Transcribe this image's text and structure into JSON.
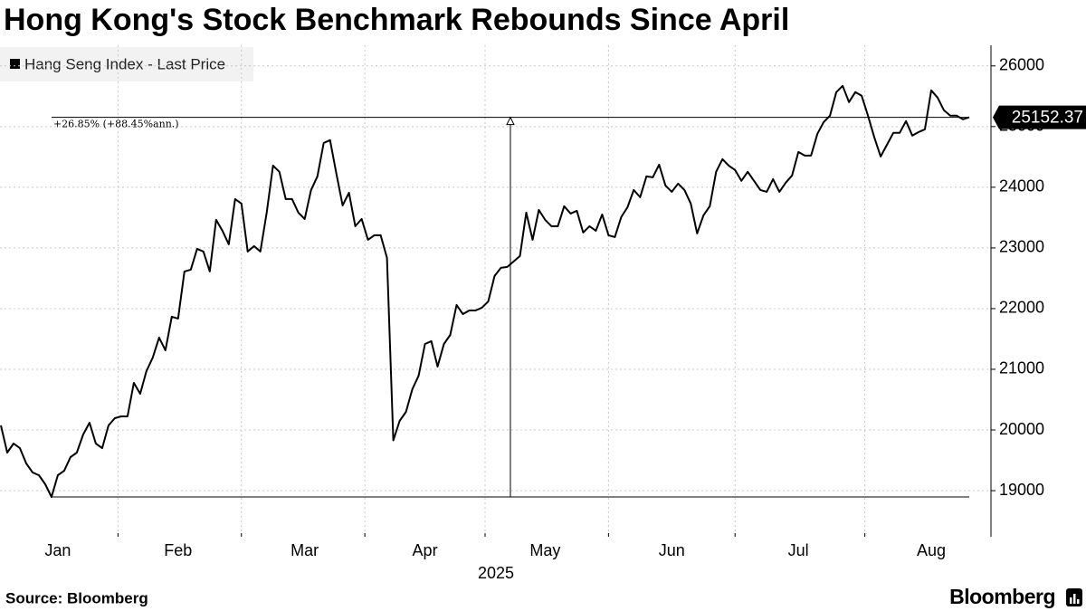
{
  "chart_data": {
    "type": "line",
    "title": "Hong Kong's Stock Benchmark Rebounds Since April",
    "x_label": "2025",
    "source": "Source: Bloomberg",
    "logo": "Bloomberg",
    "annotation": "+26.85% (+88.45%ann.)",
    "grid": true,
    "legend": "top-left",
    "ylim": [
      18240,
      26340
    ],
    "yticks": [
      19000,
      20000,
      21000,
      22000,
      23000,
      24000,
      25000,
      26000
    ],
    "categories": [
      null,
      null,
      null,
      null,
      null,
      null,
      null,
      null,
      null,
      "Jan",
      null,
      null,
      null,
      null,
      null,
      null,
      null,
      null,
      null,
      null,
      null,
      null,
      null,
      null,
      null,
      null,
      null,
      null,
      "Feb",
      null,
      null,
      null,
      null,
      null,
      null,
      null,
      null,
      null,
      null,
      null,
      null,
      null,
      null,
      null,
      null,
      null,
      null,
      null,
      "Mar",
      null,
      null,
      null,
      null,
      null,
      null,
      null,
      null,
      null,
      null,
      null,
      null,
      null,
      null,
      null,
      null,
      null,
      null,
      "Apr",
      null,
      null,
      null,
      null,
      null,
      null,
      null,
      null,
      null,
      null,
      null,
      null,
      null,
      null,
      null,
      null,
      null,
      null,
      "May",
      null,
      null,
      null,
      null,
      null,
      null,
      null,
      null,
      null,
      null,
      null,
      null,
      null,
      null,
      null,
      null,
      null,
      null,
      null,
      "Jun",
      null,
      null,
      null,
      null,
      null,
      null,
      null,
      null,
      null,
      null,
      null,
      null,
      null,
      null,
      null,
      null,
      null,
      null,
      null,
      "Jul",
      null,
      null,
      null,
      null,
      null,
      null,
      null,
      null,
      null,
      null,
      null,
      null,
      null,
      null,
      null,
      null,
      null,
      null,
      null,
      null,
      "Aug",
      null,
      null,
      null,
      null,
      null,
      null
    ],
    "series": [
      {
        "name": "Hang Seng Index - Last Price",
        "color": "#000000",
        "values": [
          20075,
          19627,
          19776,
          19700,
          19448,
          19300,
          19254,
          19105,
          18896,
          19254,
          19328,
          19552,
          19627,
          19925,
          20120,
          19776,
          19700,
          20075,
          20194,
          20224,
          20224,
          20776,
          20597,
          20970,
          21194,
          21522,
          21313,
          21866,
          21836,
          22612,
          22642,
          22985,
          22940,
          22612,
          23463,
          23284,
          23060,
          23806,
          23731,
          22940,
          23030,
          22940,
          23582,
          24358,
          24254,
          23806,
          23806,
          23582,
          23478,
          23955,
          24179,
          24731,
          24776,
          24224,
          23701,
          23910,
          23358,
          23478,
          23134,
          23209,
          23209,
          22836,
          19828.3,
          20149,
          20299,
          20672,
          20896,
          21418,
          21463,
          21045,
          21418,
          21567,
          22060,
          21910,
          21970,
          21970,
          22015,
          22119,
          22537,
          22672,
          22687,
          22776,
          22866,
          23582,
          23134,
          23627,
          23463,
          23358,
          23358,
          23687,
          23567,
          23612,
          23254,
          23358,
          23284,
          23552,
          23209,
          23179,
          23507,
          23672,
          23955,
          23836,
          24179,
          24164,
          24373,
          24030,
          23925,
          24060,
          23955,
          23731,
          23239,
          23537,
          23687,
          24254,
          24463,
          24358,
          24284,
          24105,
          24254,
          24105,
          23955,
          23925,
          24134,
          23925,
          24075,
          24194,
          24582,
          24522,
          24522,
          24881,
          25075,
          25179,
          25567,
          25672,
          25403,
          25567,
          25507,
          25179,
          24821,
          24507,
          24701,
          24896,
          24896,
          25090,
          24851,
          24910,
          24955,
          25597,
          25478,
          25269,
          25179,
          25179,
          25120,
          25152.37
        ]
      }
    ]
  }
}
